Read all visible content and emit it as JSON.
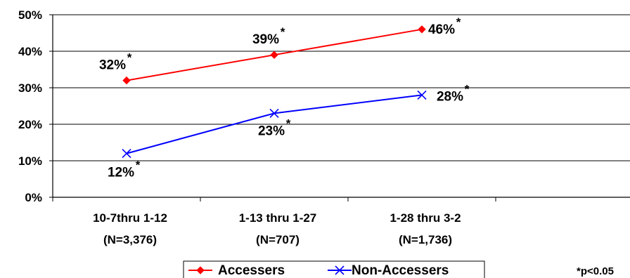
{
  "chart_data": {
    "type": "line",
    "categories": [
      "10-7thru 1-12",
      "1-13 thru 1-27",
      "1-28 thru 3-2"
    ],
    "category_sublabels": [
      "(N=3,376)",
      "(N=707)",
      "(N=1,736)"
    ],
    "series": [
      {
        "name": "Accessers",
        "values": [
          32,
          39,
          46
        ],
        "labels": [
          "32%",
          "39%",
          "46%"
        ],
        "color": "#ff0000",
        "marker": "diamond"
      },
      {
        "name": "Non-Accessers",
        "values": [
          12,
          23,
          28
        ],
        "labels": [
          "12%",
          "23%",
          "28%"
        ],
        "color": "#0000ff",
        "marker": "x"
      }
    ],
    "significance_mark": "*",
    "yticks": [
      "0%",
      "10%",
      "20%",
      "30%",
      "40%",
      "50%"
    ],
    "ylim": [
      0,
      50
    ],
    "grid": true,
    "legend_position": "bottom",
    "footnote": "*p<0.05"
  }
}
